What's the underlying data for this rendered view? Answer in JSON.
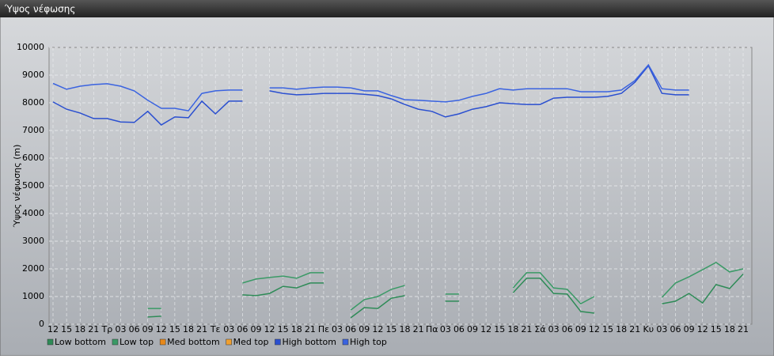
{
  "title": "Ύψος νέφωσης",
  "chart_data": {
    "type": "line",
    "y_label": "Ύψος νέφωσης (m)",
    "categories": [
      "12",
      "15",
      "18",
      "21",
      "Τρ",
      "03",
      "06",
      "09",
      "12",
      "15",
      "18",
      "21",
      "Τε",
      "03",
      "06",
      "09",
      "12",
      "15",
      "18",
      "21",
      "Πε",
      "03",
      "06",
      "09",
      "12",
      "15",
      "18",
      "21",
      "Πα",
      "03",
      "06",
      "09",
      "12",
      "15",
      "18",
      "21",
      "Σά",
      "03",
      "06",
      "09",
      "12",
      "15",
      "18",
      "21",
      "Κυ",
      "03",
      "06",
      "09",
      "12",
      "15",
      "18",
      "21"
    ],
    "series": [
      {
        "name": "Low bottom",
        "color": "#2e8b57",
        "values": [
          null,
          null,
          null,
          null,
          null,
          null,
          null,
          260,
          290,
          null,
          null,
          null,
          null,
          null,
          1060,
          1030,
          1110,
          1370,
          1310,
          1490,
          1490,
          null,
          230,
          600,
          570,
          940,
          1030,
          null,
          null,
          830,
          830,
          null,
          null,
          null,
          1140,
          1660,
          1660,
          1110,
          1090,
          460,
          400,
          null,
          null,
          null,
          null,
          740,
          830,
          1110,
          770,
          1430,
          1290,
          1810
        ]
      },
      {
        "name": "Low top",
        "color": "#3a9a66",
        "values": [
          null,
          null,
          null,
          null,
          null,
          null,
          null,
          570,
          570,
          null,
          null,
          null,
          null,
          null,
          1490,
          1630,
          1690,
          1740,
          1660,
          1860,
          1860,
          null,
          510,
          890,
          1000,
          1260,
          1400,
          null,
          null,
          1090,
          1090,
          null,
          null,
          null,
          1310,
          1860,
          1860,
          1310,
          1260,
          740,
          1000,
          null,
          null,
          null,
          null,
          970,
          1490,
          1710,
          1970,
          2230,
          1890,
          2000
        ]
      },
      {
        "name": "Med bottom",
        "color": "#e8891a",
        "values": [
          null,
          null,
          null,
          null,
          null,
          null,
          null,
          null,
          null,
          null,
          null,
          null,
          null,
          null,
          null,
          null,
          null,
          null,
          null,
          null,
          null,
          null,
          null,
          null,
          null,
          null,
          null,
          null,
          null,
          null,
          null,
          null,
          null,
          null,
          null,
          null,
          null,
          null,
          null,
          null,
          null,
          null,
          null,
          null,
          null,
          null,
          null,
          null,
          null,
          null,
          null,
          null
        ]
      },
      {
        "name": "Med top",
        "color": "#f0a030",
        "values": [
          null,
          null,
          null,
          null,
          null,
          null,
          null,
          null,
          null,
          null,
          null,
          null,
          null,
          null,
          null,
          null,
          null,
          null,
          null,
          null,
          null,
          null,
          null,
          null,
          null,
          null,
          null,
          null,
          null,
          null,
          null,
          null,
          null,
          null,
          null,
          null,
          null,
          null,
          null,
          null,
          null,
          null,
          null,
          null,
          null,
          null,
          null,
          null,
          null,
          null,
          null,
          null
        ]
      },
      {
        "name": "High bottom",
        "color": "#2a4fd0",
        "values": [
          8030,
          7770,
          7630,
          7430,
          7430,
          7310,
          7290,
          7690,
          7200,
          7490,
          7460,
          8060,
          7600,
          8060,
          8060,
          null,
          8430,
          8340,
          8290,
          8310,
          8340,
          8340,
          8340,
          8310,
          8260,
          8140,
          7940,
          7770,
          7690,
          7490,
          7600,
          7770,
          7860,
          8000,
          7970,
          7940,
          7940,
          8170,
          8200,
          8200,
          8200,
          8230,
          8340,
          8740,
          9340,
          8340,
          8290,
          8290,
          null,
          null,
          null,
          null
        ]
      },
      {
        "name": "High top",
        "color": "#3a63e0",
        "values": [
          8700,
          8490,
          8600,
          8660,
          8690,
          8600,
          8430,
          8090,
          7800,
          7800,
          7710,
          8340,
          8430,
          8460,
          8460,
          null,
          8540,
          8540,
          8490,
          8540,
          8570,
          8570,
          8540,
          8430,
          8430,
          8260,
          8110,
          8090,
          8060,
          8030,
          8090,
          8230,
          8340,
          8510,
          8460,
          8510,
          8510,
          8510,
          8510,
          8400,
          8400,
          8400,
          8460,
          8800,
          9370,
          8510,
          8460,
          8460,
          null,
          null,
          null,
          null
        ]
      }
    ],
    "ylim": [
      0,
      10000
    ],
    "yticks": [
      0,
      1000,
      2000,
      3000,
      4000,
      5000,
      6000,
      7000,
      8000,
      9000,
      10000
    ],
    "grid": true
  }
}
